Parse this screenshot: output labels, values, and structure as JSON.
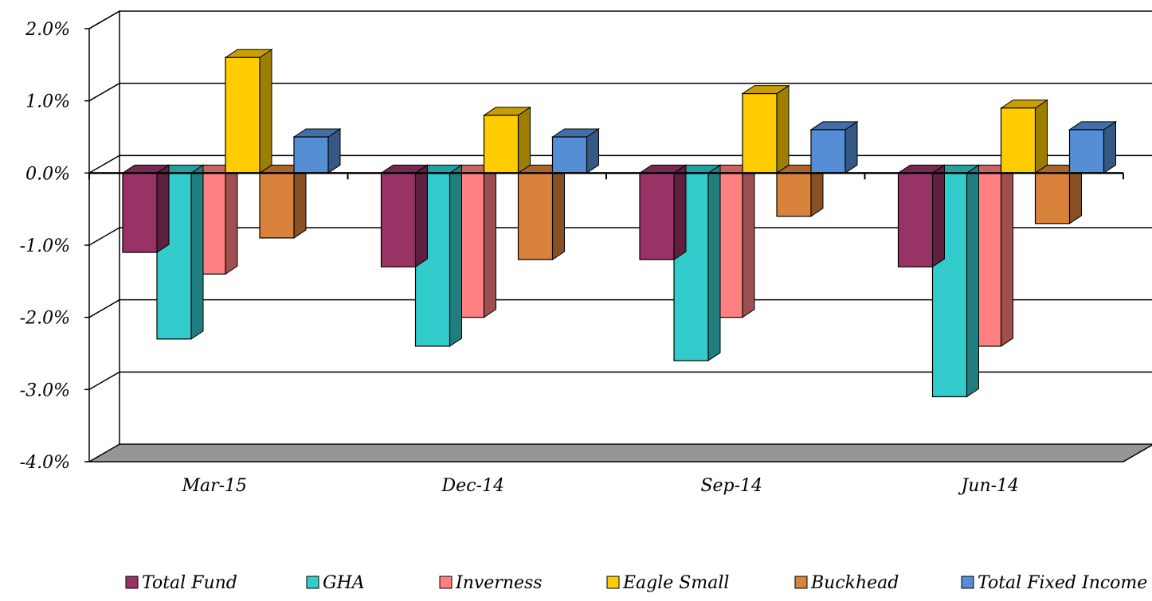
{
  "chart_data": {
    "type": "bar",
    "categories": [
      "Mar-15",
      "Dec-14",
      "Sep-14",
      "Jun-14"
    ],
    "series": [
      {
        "name": "Total Fund",
        "values": [
          -1.1,
          -1.3,
          -1.2,
          -1.3
        ],
        "color": "#993366"
      },
      {
        "name": "GHA",
        "values": [
          -2.3,
          -2.4,
          -2.6,
          -3.1
        ],
        "color": "#33CCCC"
      },
      {
        "name": "Inverness",
        "values": [
          -1.4,
          -2.0,
          -2.0,
          -2.4
        ],
        "color": "#FF8080"
      },
      {
        "name": "Eagle Small",
        "values": [
          1.6,
          0.8,
          1.1,
          0.9
        ],
        "color": "#FFCC00"
      },
      {
        "name": "Buckhead",
        "values": [
          -0.9,
          -1.2,
          -0.6,
          -0.7
        ],
        "color": "#D9823B"
      },
      {
        "name": "Total Fixed Income",
        "values": [
          0.5,
          0.5,
          0.6,
          0.6
        ],
        "color": "#558ED5"
      }
    ],
    "yticks": [
      "2.0%",
      "1.0%",
      "0.0%",
      "-1.0%",
      "-2.0%",
      "-3.0%",
      "-4.0%"
    ],
    "ylim": [
      -4,
      2
    ],
    "grid": true,
    "legend_position": "bottom",
    "title": "",
    "xlabel": "",
    "ylabel": ""
  }
}
